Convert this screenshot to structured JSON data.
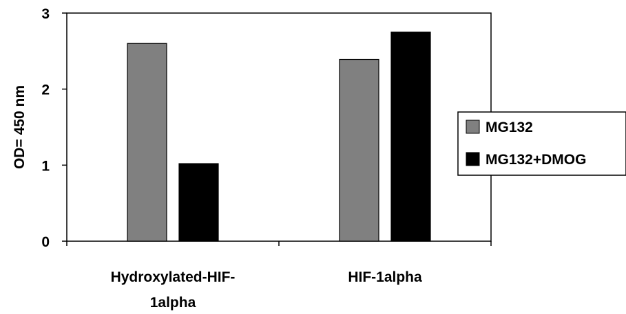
{
  "chart_data": {
    "type": "bar",
    "title": "",
    "xlabel": "",
    "ylabel": "OD= 450 nm",
    "ylim": [
      0,
      3
    ],
    "yticks": [
      0,
      1,
      2,
      3
    ],
    "grid": false,
    "legend_position": "right",
    "categories": [
      "Hydroxylated-HIF-1alpha",
      "HIF-1alpha"
    ],
    "category_label_lines": [
      [
        "Hydroxylated-HIF-",
        "1alpha"
      ],
      [
        "HIF-1alpha"
      ]
    ],
    "series": [
      {
        "name": "MG132",
        "values": [
          2.6,
          2.39
        ],
        "color": "#808080"
      },
      {
        "name": "MG132+DMOG",
        "values": [
          1.02,
          2.75
        ],
        "color": "#000000"
      }
    ]
  }
}
